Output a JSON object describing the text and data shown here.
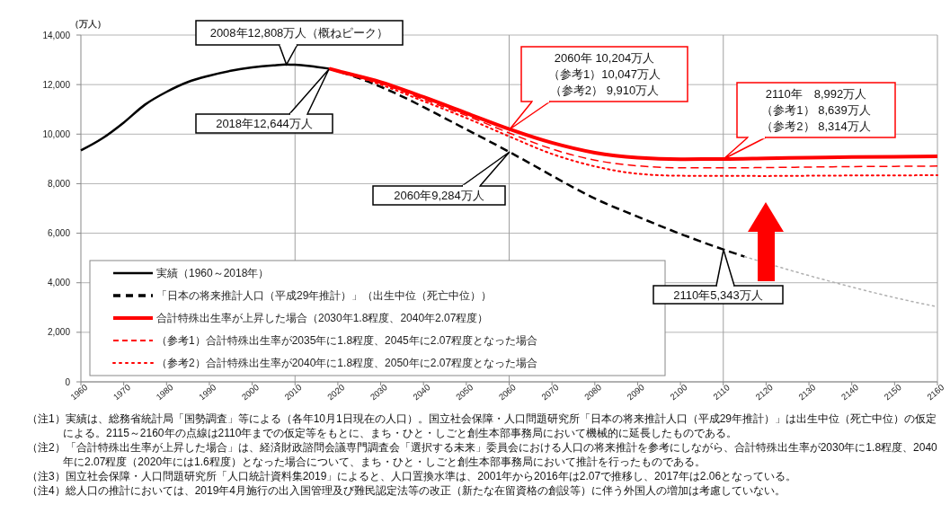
{
  "chart_data": {
    "type": "line",
    "ylabel": "（万人）",
    "xlim": [
      1960,
      2160
    ],
    "xticks": [
      1960,
      1970,
      1980,
      1990,
      2000,
      2010,
      2020,
      2030,
      2040,
      2050,
      2060,
      2070,
      2080,
      2090,
      2100,
      2110,
      2120,
      2130,
      2140,
      2150,
      2160
    ],
    "ylim": [
      0,
      14000
    ],
    "yticks": [
      0,
      {
        "value": 2000,
        "label": "2,000"
      },
      {
        "value": 4000,
        "label": "4,000"
      },
      {
        "value": 6000,
        "label": "6,000"
      },
      {
        "value": 8000,
        "label": "8,000"
      },
      {
        "value": 10000,
        "label": "10,000"
      },
      {
        "value": 12000,
        "label": "12,000"
      },
      {
        "value": 14000,
        "label": "14,000"
      }
    ],
    "grid": "y",
    "legend": "bottom left",
    "ref_lines": [
      {
        "axis": "x",
        "value": 2010,
        "color": "#a0a0a0"
      },
      {
        "axis": "x",
        "value": 2060,
        "color": "#a0a0a0"
      },
      {
        "axis": "x",
        "value": 2110,
        "color": "#a0a0a0"
      }
    ],
    "series": [
      {
        "name": "実績（1960～2018年）",
        "color": "#000000",
        "line_style": "solid",
        "x": [
          1960,
          1965,
          1970,
          1975,
          1980,
          1985,
          1990,
          1995,
          2000,
          2005,
          2008,
          2010,
          2015,
          2018
        ],
        "values": [
          9342,
          9828,
          10467,
          11194,
          11706,
          12105,
          12361,
          12557,
          12693,
          12777,
          12808,
          12806,
          12709,
          12644
        ]
      },
      {
        "name": "「日本の将来推計人口（平成29年推計）」（出生中位（死亡中位））",
        "color": "#000000",
        "line_style": "dashed",
        "x": [
          2018,
          2025,
          2030,
          2035,
          2040,
          2045,
          2050,
          2055,
          2060,
          2065,
          2070,
          2080,
          2090,
          2100,
          2110,
          2115
        ],
        "values": [
          12644,
          12254,
          11913,
          11522,
          11092,
          10642,
          10192,
          9744,
          9284,
          8808,
          8323,
          7400,
          6668,
          5972,
          5343,
          5055
        ]
      },
      {
        "color": "#b0b0b0",
        "line_style": "dotted",
        "x": [
          2115,
          2130,
          2140,
          2150,
          2160
        ],
        "values": [
          5055,
          4290,
          3830,
          3400,
          3030
        ]
      },
      {
        "name": "合計特殊出生率が上昇した場合（2030年1.8程度、2040年2.07程度）",
        "color": "#ff0000",
        "line_style": "solid",
        "x": [
          2018,
          2020,
          2030,
          2040,
          2050,
          2060,
          2070,
          2080,
          2090,
          2100,
          2110,
          2120,
          2130,
          2140,
          2150,
          2160
        ],
        "values": [
          12644,
          12550,
          12100,
          11500,
          10850,
          10204,
          9650,
          9250,
          9050,
          8990,
          8992,
          9020,
          9050,
          9080,
          9090,
          9100
        ]
      },
      {
        "name": "（参考1）合計特殊出生率が2035年に1.8程度、2045年に2.07程度となった場合",
        "color": "#ff0000",
        "line_style": "dashed",
        "x": [
          2018,
          2030,
          2040,
          2050,
          2060,
          2070,
          2080,
          2090,
          2100,
          2110,
          2120,
          2130,
          2140,
          2150,
          2160
        ],
        "values": [
          12644,
          12050,
          11400,
          10750,
          10047,
          9400,
          8950,
          8720,
          8640,
          8639,
          8650,
          8670,
          8690,
          8700,
          8710
        ]
      },
      {
        "name": "（参考2）合計特殊出生率が2040年に1.8程度、2050年に2.07程度となった場合",
        "color": "#ff0000",
        "line_style": "dotted",
        "x": [
          2018,
          2030,
          2040,
          2050,
          2060,
          2070,
          2080,
          2090,
          2100,
          2110,
          2120,
          2130,
          2140,
          2150,
          2160
        ],
        "values": [
          12644,
          12000,
          11330,
          10650,
          9910,
          9200,
          8700,
          8400,
          8320,
          8314,
          8310,
          8320,
          8330,
          8335,
          8340
        ]
      }
    ],
    "annotations": [
      {
        "text": "2008年12,808万人（概ねピーク）",
        "x": 2008,
        "y": 12808
      },
      "2018年12,644万人",
      "2060年 10,204万人（参考1）10,047万人（参考2） 9,910万人",
      "2110年　8,992万人（参考1） 8,639万人（参考2） 8,314万人",
      "2060年9,284万人",
      "2110年5,343万人",
      "（注1）実績は、総務省統計局「国勢調査」等による（各年10月1日現在の人口）。国立社会保障・人口問題研究所「日本の将来推計人口（平成29年推計）」は出生中位（死亡中位）の仮定による。2115～2160年の点線は2110年までの仮定等をもとに、まち・ひと・しごと創生本部事務局において機械的に延長したものである。",
      "（注2）「合計特殊出生率が上昇した場合」は、経済財政諮問会議専門調査会「選択する未来」委員会における人口の将来推計を参考にしながら、合計特殊出生率が2030年に1.8程度、2040年に2.07程度（2020年には1.6程度）となった場合について、まち・ひと・しごと創生本部事務局において推計を行ったものである。",
      "（注3）国立社会保障・人口問題研究所「人口統計資料集2019」によると、人口置換水準は、2001年から2016年は2.07で推移し、2017年は2.06となっている。",
      "（注4）総人口の推計においては、2019年4月施行の出入国管理及び難民認定法等の改正（新たな在留資格の創設等）に伴う外国人の増加は考慮していない。"
    ]
  }
}
